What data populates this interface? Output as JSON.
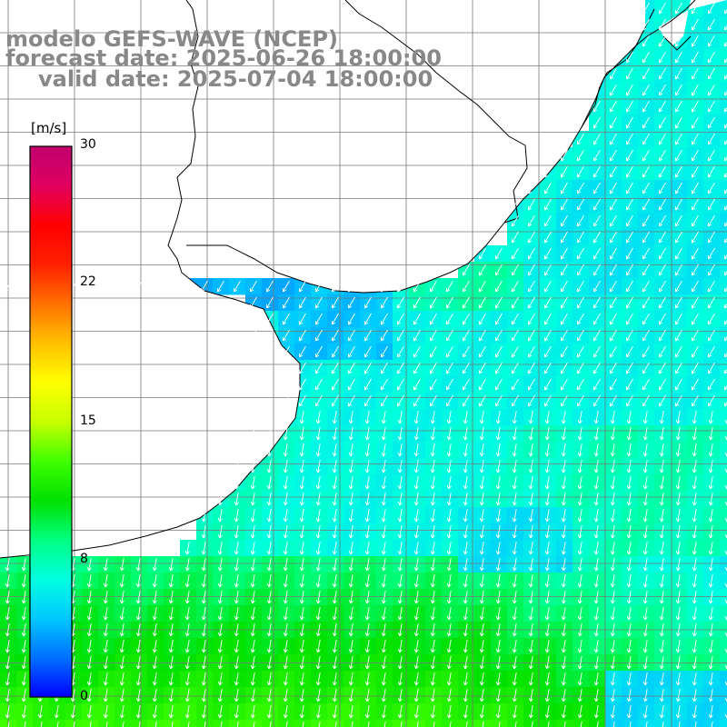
{
  "title": {
    "model": "modelo GEFS-WAVE (NCEP)",
    "forecast": "forecast date: 2025-06-26 18:00:00",
    "valid": "valid date: 2025-07-04 18:00:00"
  },
  "colorbar": {
    "unit": "[m/s]",
    "min": 0,
    "max": 30,
    "ticks": [
      "30",
      "22",
      "15",
      "8",
      "0"
    ],
    "tick_values": [
      30,
      22,
      15,
      8,
      0
    ],
    "colors": [
      "#0000ff",
      "#0070ff",
      "#00c8ff",
      "#00ffe0",
      "#00ff80",
      "#00e000",
      "#40ff00",
      "#c8ff00",
      "#ffff00",
      "#ffc000",
      "#ff7000",
      "#ff2000",
      "#ff0000",
      "#e00060",
      "#c0006c"
    ]
  },
  "field": {
    "type": "wind-speed-map",
    "wind_direction": "from north-northeast (arrows pointing south/southwest)",
    "max_value_shown": 12
  }
}
